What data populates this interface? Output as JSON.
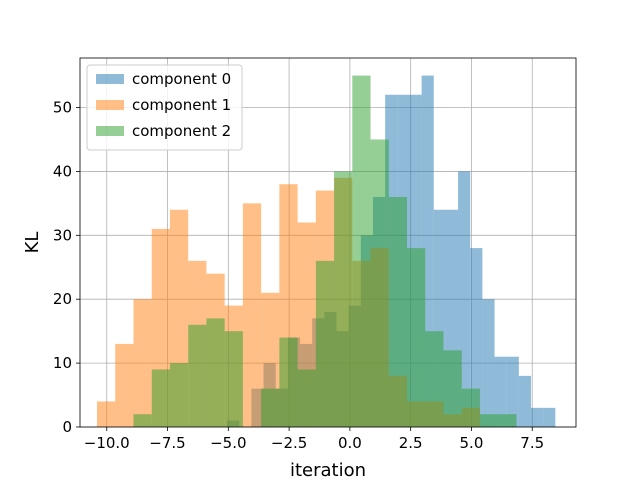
{
  "chart_data": {
    "type": "histogram",
    "title": "",
    "xlabel": "iteration",
    "ylabel": "KL",
    "xlim": [
      -11.1,
      9.3
    ],
    "ylim": [
      0,
      57.75
    ],
    "xticks": [
      -10.0,
      -7.5,
      -5.0,
      -2.5,
      0.0,
      2.5,
      5.0,
      7.5
    ],
    "xtick_labels": [
      "−10.0",
      "−7.5",
      "−5.0",
      "−2.5",
      "0.0",
      "2.5",
      "5.0",
      "7.5"
    ],
    "yticks": [
      0,
      10,
      20,
      30,
      40,
      50
    ],
    "ytick_labels": [
      "0",
      "10",
      "20",
      "30",
      "40",
      "50"
    ],
    "grid": true,
    "legend_position": "top-left",
    "series": [
      {
        "name": "component 0",
        "color": "#1f77b4",
        "alpha": 0.5,
        "bin_start": -5.05,
        "bin_width": 0.5,
        "counts": [
          1,
          0,
          6,
          10,
          6,
          14,
          13,
          17,
          18,
          15,
          19,
          30,
          36,
          52,
          52,
          52,
          55,
          34,
          34,
          40,
          28,
          20,
          11,
          11,
          8,
          3,
          3
        ]
      },
      {
        "name": "component 1",
        "color": "#ff7f0e",
        "alpha": 0.5,
        "bin_start": -10.4,
        "bin_width": 0.75,
        "counts": [
          4,
          13,
          20,
          31,
          34,
          26,
          24,
          19,
          35,
          21,
          38,
          32,
          37,
          39,
          26,
          28,
          8,
          4,
          4,
          2,
          3
        ]
      },
      {
        "name": "component 2",
        "color": "#2ca02c",
        "alpha": 0.5,
        "bin_start": -8.9,
        "bin_width": 0.75,
        "counts": [
          2,
          9,
          10,
          16,
          17,
          15,
          0,
          6,
          14,
          9,
          26,
          40,
          55,
          45,
          36,
          28,
          15,
          12,
          6,
          2,
          2
        ]
      }
    ]
  }
}
